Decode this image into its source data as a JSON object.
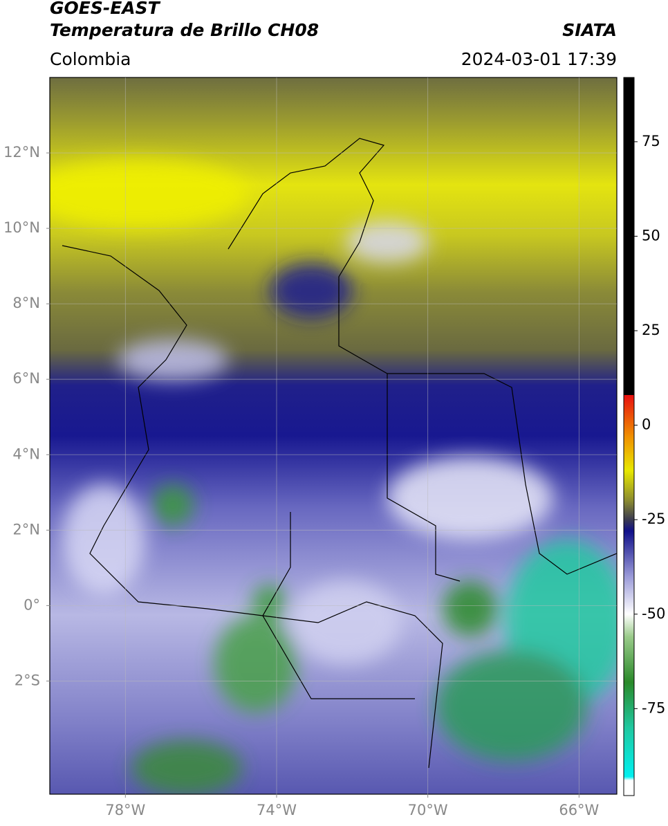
{
  "header": {
    "title": "GOES-EAST",
    "subtitle": "Temperatura de Brillo CH08",
    "source": "SIATA",
    "region": "Colombia",
    "datetime": "2024-03-01 17:39"
  },
  "map": {
    "xlim": [
      -80,
      -65
    ],
    "ylim": [
      -5,
      14
    ],
    "grid": true,
    "xticks": [
      {
        "value": -78,
        "label": "78°W"
      },
      {
        "value": -74,
        "label": "74°W"
      },
      {
        "value": -70,
        "label": "70°W"
      },
      {
        "value": -66,
        "label": "66°W"
      }
    ],
    "yticks": [
      {
        "value": 12,
        "label": "12°N"
      },
      {
        "value": 10,
        "label": "10°N"
      },
      {
        "value": 8,
        "label": "8°N"
      },
      {
        "value": 6,
        "label": "6°N"
      },
      {
        "value": 4,
        "label": "4°N"
      },
      {
        "value": 2,
        "label": "2°N"
      },
      {
        "value": 0,
        "label": "0°"
      },
      {
        "value": -2,
        "label": "2°S"
      }
    ]
  },
  "colorbar": {
    "range": [
      -98,
      92
    ],
    "ticks": [
      75,
      50,
      25,
      0,
      -25,
      -50,
      -75
    ],
    "stops": [
      {
        "value": -98,
        "color": "#ffffff"
      },
      {
        "value": -94,
        "color": "#ffffff"
      },
      {
        "value": -93,
        "color": "#00f0f0"
      },
      {
        "value": -80,
        "color": "#20c8a0"
      },
      {
        "value": -68,
        "color": "#2a8a2a"
      },
      {
        "value": -56,
        "color": "#9acb8a"
      },
      {
        "value": -50,
        "color": "#ffffff"
      },
      {
        "value": -40,
        "color": "#9a9ad8"
      },
      {
        "value": -28,
        "color": "#10108a"
      },
      {
        "value": -25,
        "color": "#3a3a50"
      },
      {
        "value": -20,
        "color": "#8a8a30"
      },
      {
        "value": -12,
        "color": "#e8e800"
      },
      {
        "value": -3,
        "color": "#f09000"
      },
      {
        "value": 8,
        "color": "#e81010"
      },
      {
        "value": 8.01,
        "color": "#000000"
      },
      {
        "value": 92,
        "color": "#000000"
      }
    ]
  }
}
